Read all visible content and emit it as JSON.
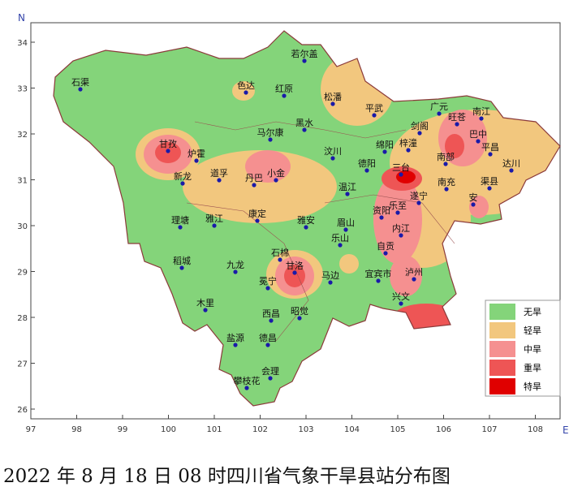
{
  "map": {
    "x_label": "E",
    "y_label": "N",
    "xticks": [
      97,
      98,
      99,
      100,
      101,
      102,
      103,
      104,
      105,
      106,
      107,
      108
    ],
    "yticks": [
      26,
      27,
      28,
      29,
      30,
      31,
      32,
      33,
      34
    ],
    "legend": [
      "无旱",
      "轻旱",
      "中旱",
      "重旱",
      "特旱"
    ],
    "cities": [
      "石渠",
      "若尔盖",
      "色达",
      "红原",
      "松潘",
      "平武",
      "广元",
      "旺苍",
      "南江",
      "黑水",
      "马尔康",
      "剑阁",
      "巴中",
      "梓潼",
      "平昌",
      "甘孜",
      "炉霍",
      "汶川",
      "绵阳",
      "南部",
      "达川",
      "德阳",
      "三台",
      "新龙",
      "道孚",
      "丹巴",
      "小金",
      "南充",
      "渠县",
      "温江",
      "遂宁",
      "乐至",
      "安",
      "理塘",
      "雅江",
      "康定",
      "雅安",
      "眉山",
      "资阳",
      "内江",
      "乐山",
      "稻城",
      "九龙",
      "石棉",
      "甘洛",
      "自贡",
      "冕宁",
      "马边",
      "宜宾市",
      "泸州",
      "兴文",
      "木里",
      "西昌",
      "昭觉",
      "盐源",
      "德昌",
      "会理",
      "攀枝花"
    ]
  },
  "caption": "2022 年 8 月 18 日 08 时四川省气象干旱县站分布图"
}
